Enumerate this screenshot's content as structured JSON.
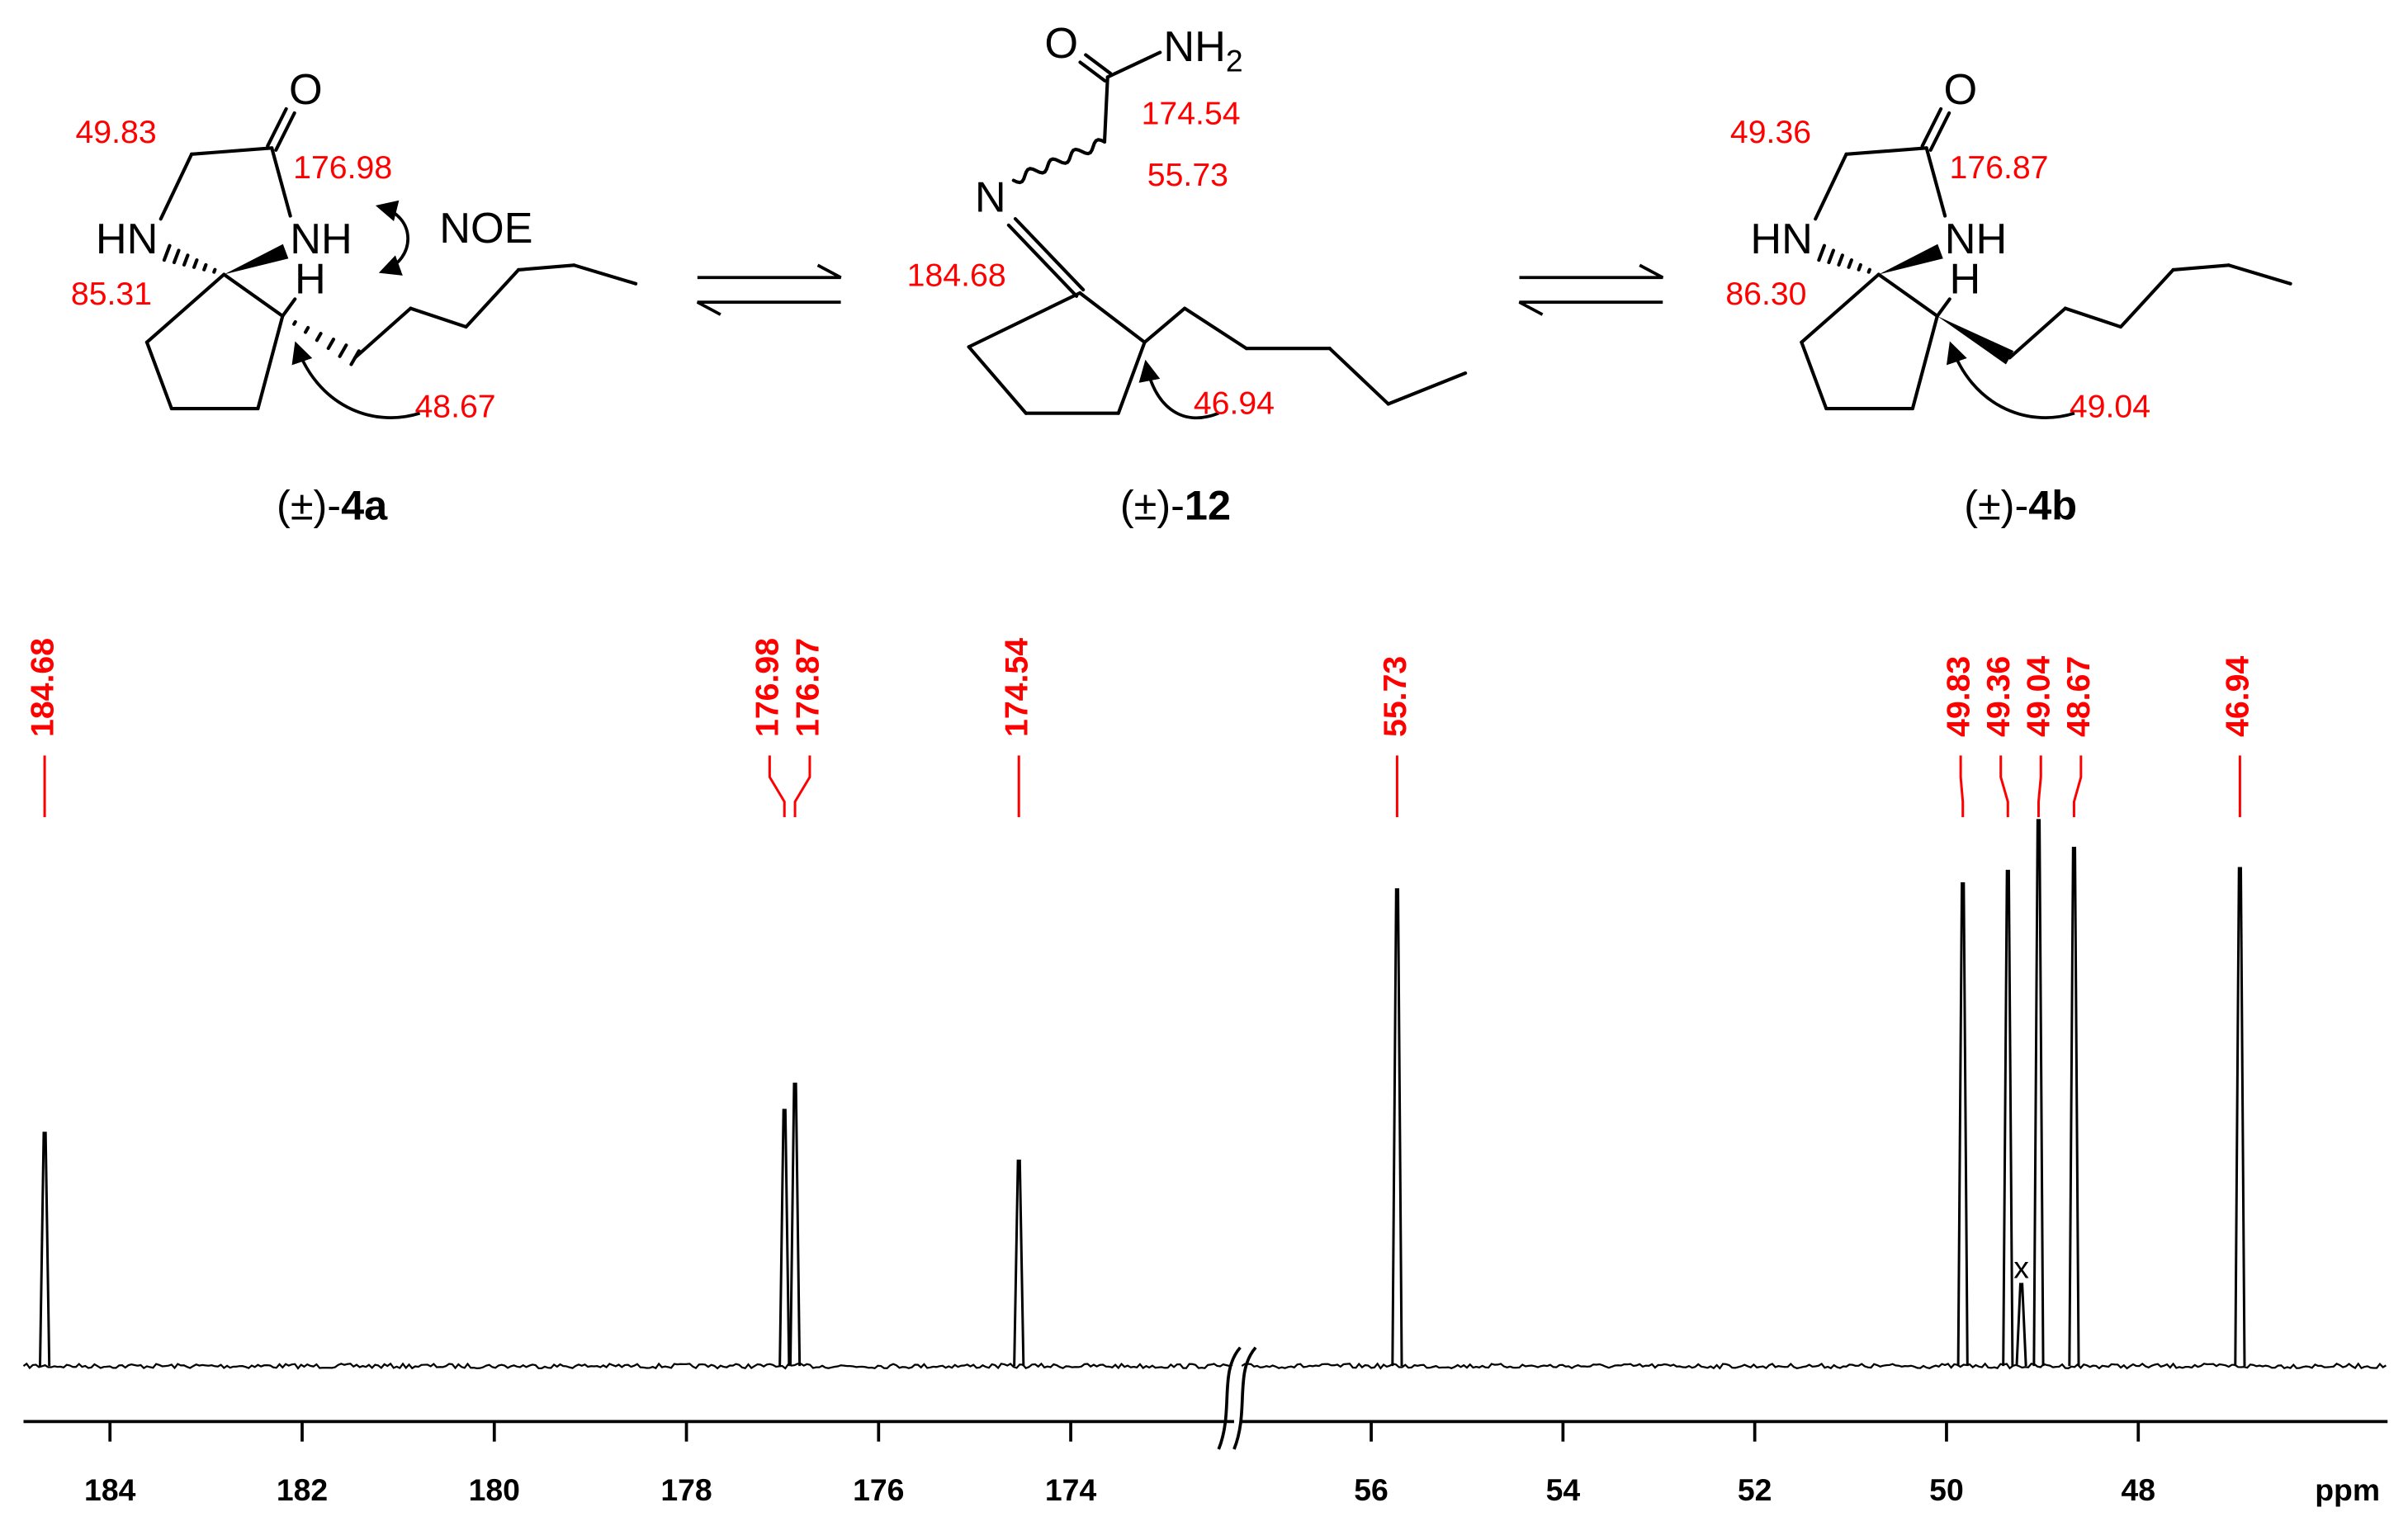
{
  "scheme": {
    "compounds": [
      {
        "name": {
          "prefix": "(±)-",
          "number": "4a"
        },
        "atom_labels": [
          "O",
          "HN",
          "NH",
          "H",
          "NOE"
        ],
        "shifts": [
          "49.83",
          "176.98",
          "85.31",
          "48.67"
        ]
      },
      {
        "name": {
          "prefix": "(±)-",
          "number": "12"
        },
        "atom_labels": [
          "O",
          {
            "main": "NH",
            "sub": "2"
          },
          "N"
        ],
        "shifts": [
          "174.54",
          "55.73",
          "184.68",
          "46.94"
        ]
      },
      {
        "name": {
          "prefix": "(±)-",
          "number": "4b"
        },
        "atom_labels": [
          "O",
          "HN",
          "NH",
          "H"
        ],
        "shifts": [
          "49.36",
          "176.87",
          "86.30",
          "49.04"
        ]
      }
    ]
  },
  "chart_data": {
    "type": "spectrum",
    "x_axis": {
      "label": "ppm",
      "segments": [
        {
          "xlim": [
            184.9,
            172.3
          ],
          "xticks": [
            184,
            182,
            180,
            178,
            176,
            174
          ]
        },
        {
          "xlim": [
            57.35,
            45.4
          ],
          "xticks": [
            56,
            54,
            52,
            50,
            48
          ]
        }
      ]
    },
    "peaks": [
      {
        "ppm": 184.68,
        "height": 42.7
      },
      {
        "ppm": 176.98,
        "height": 46.9
      },
      {
        "ppm": 176.87,
        "height": 51.7
      },
      {
        "ppm": 174.54,
        "height": 37.6
      },
      {
        "ppm": 55.73,
        "height": 87.3
      },
      {
        "ppm": 49.83,
        "height": 88.4
      },
      {
        "ppm": 49.36,
        "height": 90.7
      },
      {
        "ppm": 49.04,
        "height": 100
      },
      {
        "ppm": 48.67,
        "height": 94.9
      },
      {
        "ppm": 46.94,
        "height": 91.2
      }
    ],
    "impurity": {
      "label": "x",
      "ppm": 49.22,
      "height": 15
    },
    "line_color": "#000000",
    "label_color": "#ff0000"
  }
}
